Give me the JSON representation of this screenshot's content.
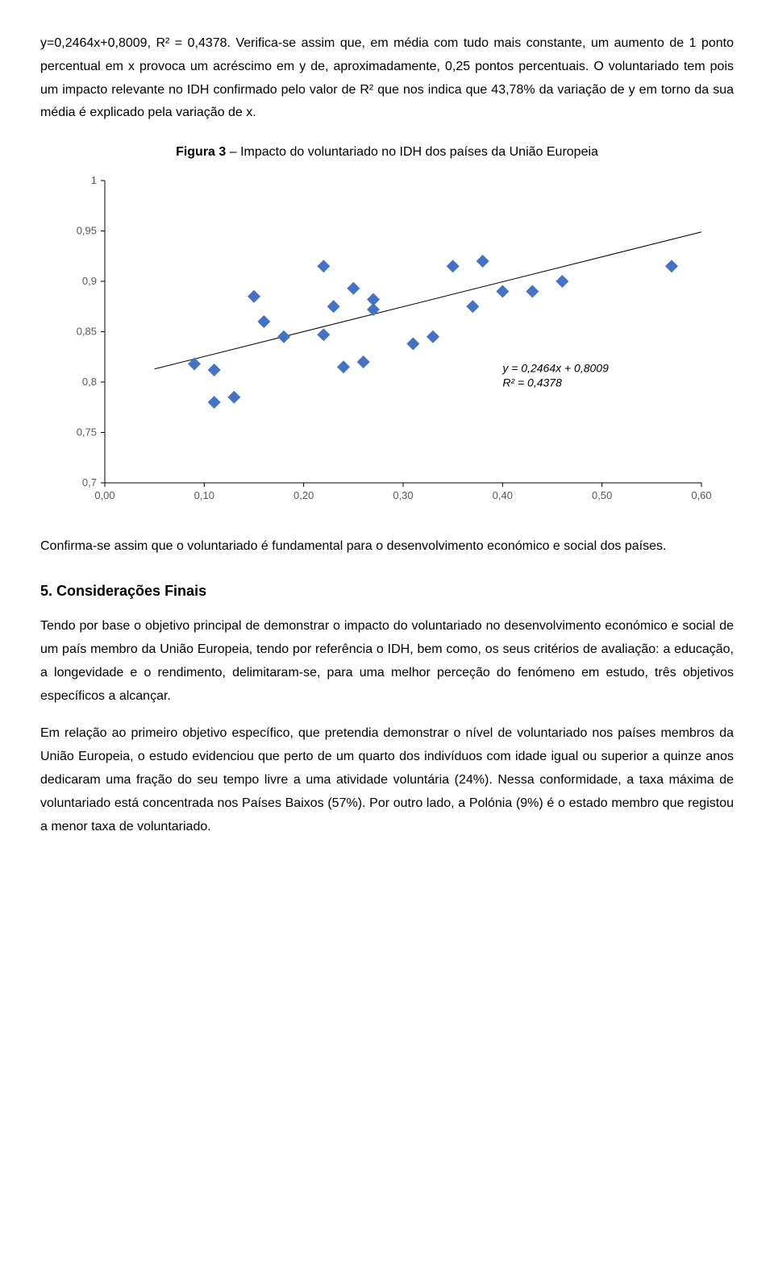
{
  "paragraphs": {
    "p1": "y=0,2464x+0,8009, R² = 0,4378. Verifica-se assim que, em média com tudo mais constante, um aumento de 1 ponto percentual em x provoca um acréscimo em y de, aproximadamente, 0,25 pontos percentuais. O voluntariado tem pois um impacto relevante no IDH confirmado pelo valor de R² que nos indica que 43,78% da variação de y em torno da sua média é explicado pela variação de x.",
    "figure_caption_bold": "Figura 3",
    "figure_caption_rest": " – Impacto do voluntariado no IDH dos países da União Europeia",
    "p2": "Confirma-se assim que o voluntariado é fundamental para o desenvolvimento económico e social dos países.",
    "section_title": "5. Considerações Finais",
    "p3": "Tendo por base o objetivo principal de demonstrar o impacto do voluntariado no desenvolvimento económico e social de um país membro da União Europeia, tendo por referência o IDH, bem como, os seus critérios de avaliação: a educação, a longevidade e o rendimento, delimitaram-se, para uma melhor perceção do fenómeno em estudo, três objetivos específicos a alcançar.",
    "p4": "Em relação ao primeiro objetivo específico, que pretendia demonstrar o nível de voluntariado nos países membros da União Europeia, o estudo evidenciou que perto de um quarto dos indivíduos com idade igual ou superior a quinze anos dedicaram uma fração do seu tempo livre a uma atividade voluntária (24%). Nessa conformidade, a taxa máxima de voluntariado está concentrada nos Países Baixos (57%). Por outro lado, a Polónia (9%) é o estado membro que registou a menor taxa de voluntariado."
  },
  "chart": {
    "type": "scatter",
    "xlim": [
      0.0,
      0.6
    ],
    "ylim": [
      0.7,
      1.0
    ],
    "x_ticks": [
      0.0,
      0.1,
      0.2,
      0.3,
      0.4,
      0.5,
      0.6
    ],
    "x_tick_labels": [
      "0,00",
      "0,10",
      "0,20",
      "0,30",
      "0,40",
      "0,50",
      "0,60"
    ],
    "y_ticks": [
      0.7,
      0.75,
      0.8,
      0.85,
      0.9,
      0.95,
      1.0
    ],
    "y_tick_labels": [
      "0,7",
      "0,75",
      "0,8",
      "0,85",
      "0,9",
      "0,95",
      "1"
    ],
    "marker_type": "diamond",
    "marker_size": 8,
    "marker_color": "#4472c4",
    "trendline_color": "#000000",
    "trendline_width": 1,
    "trendline_x1": 0.05,
    "trendline_y1": 0.813,
    "trendline_x2": 0.6,
    "trendline_y2": 0.949,
    "equation_line1": "y = 0,2464x + 0,8009",
    "equation_line2": "R² = 0,4378",
    "equation_pos_x": 0.4,
    "equation_pos_y": 0.81,
    "background_color": "#ffffff",
    "axis_color": "#000000",
    "tick_label_color": "#595959",
    "tick_fontsize": 13,
    "points": [
      {
        "x": 0.09,
        "y": 0.818
      },
      {
        "x": 0.11,
        "y": 0.812
      },
      {
        "x": 0.11,
        "y": 0.78
      },
      {
        "x": 0.13,
        "y": 0.785
      },
      {
        "x": 0.15,
        "y": 0.885
      },
      {
        "x": 0.16,
        "y": 0.86
      },
      {
        "x": 0.18,
        "y": 0.845
      },
      {
        "x": 0.22,
        "y": 0.915
      },
      {
        "x": 0.22,
        "y": 0.847
      },
      {
        "x": 0.23,
        "y": 0.875
      },
      {
        "x": 0.24,
        "y": 0.815
      },
      {
        "x": 0.25,
        "y": 0.893
      },
      {
        "x": 0.26,
        "y": 0.82
      },
      {
        "x": 0.27,
        "y": 0.882
      },
      {
        "x": 0.27,
        "y": 0.872
      },
      {
        "x": 0.31,
        "y": 0.838
      },
      {
        "x": 0.33,
        "y": 0.845
      },
      {
        "x": 0.35,
        "y": 0.915
      },
      {
        "x": 0.37,
        "y": 0.875
      },
      {
        "x": 0.38,
        "y": 0.92
      },
      {
        "x": 0.4,
        "y": 0.89
      },
      {
        "x": 0.43,
        "y": 0.89
      },
      {
        "x": 0.46,
        "y": 0.9
      },
      {
        "x": 0.57,
        "y": 0.915
      }
    ]
  }
}
